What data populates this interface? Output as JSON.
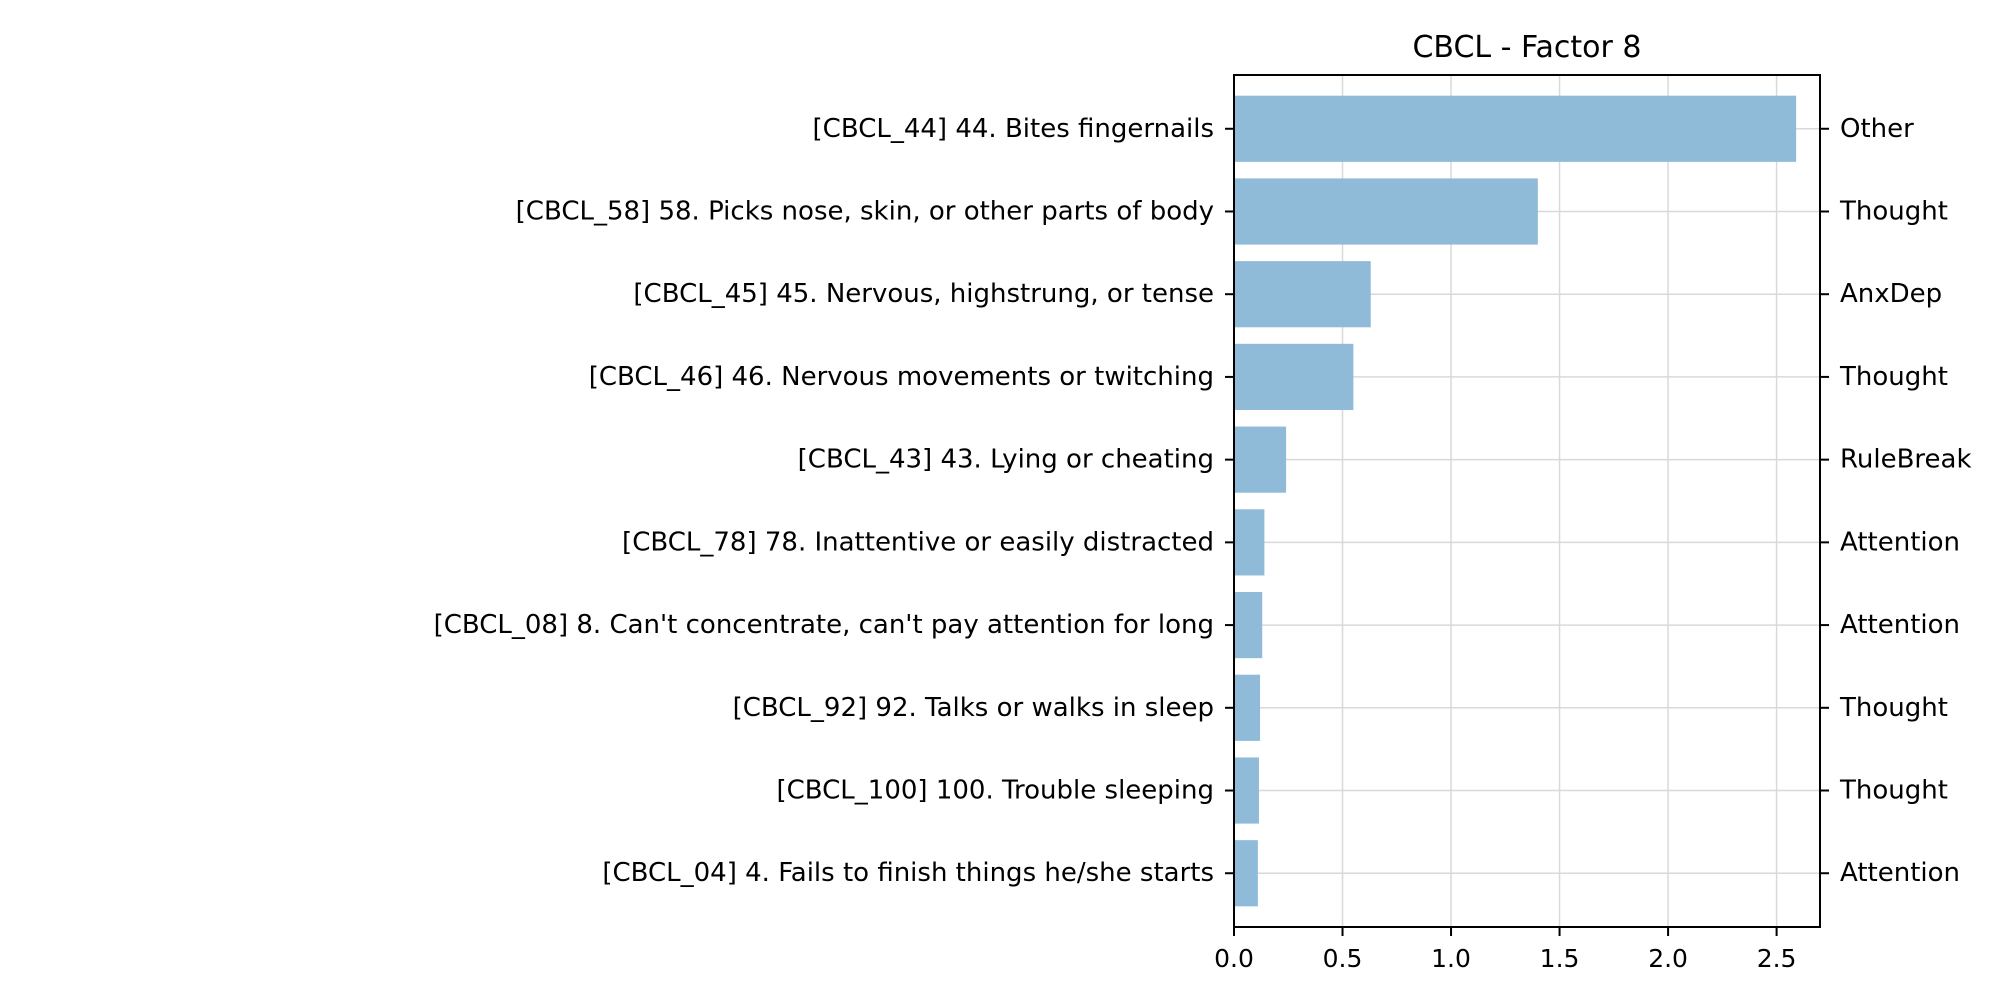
{
  "chart_data": {
    "type": "bar",
    "orientation": "horizontal",
    "title": "CBCL - Factor 8",
    "xlabel": "",
    "ylabel": "",
    "xlim": [
      0,
      2.7
    ],
    "x_ticks": [
      "0.0",
      "0.5",
      "1.0",
      "1.5",
      "2.0",
      "2.5"
    ],
    "grid": true,
    "bar_color": "#8fbbd9",
    "categories": [
      "[CBCL_44] 44. Bites fingernails",
      "[CBCL_58] 58. Picks nose, skin, or other parts of body",
      "[CBCL_45] 45. Nervous, highstrung, or tense",
      "[CBCL_46] 46. Nervous movements or twitching",
      "[CBCL_43] 43. Lying or cheating",
      "[CBCL_78] 78. Inattentive or easily distracted",
      "[CBCL_08] 8. Can't concentrate, can't pay attention for long",
      "[CBCL_92] 92. Talks or walks in sleep",
      "[CBCL_100] 100. Trouble sleeping",
      "[CBCL_04] 4. Fails to finish things he/she starts"
    ],
    "values": [
      2.59,
      1.4,
      0.63,
      0.55,
      0.24,
      0.14,
      0.13,
      0.12,
      0.115,
      0.11
    ],
    "right_labels": [
      "Other",
      "Thought",
      "AnxDep",
      "Thought",
      "RuleBreak",
      "Attention",
      "Attention",
      "Thought",
      "Thought",
      "Attention"
    ]
  }
}
